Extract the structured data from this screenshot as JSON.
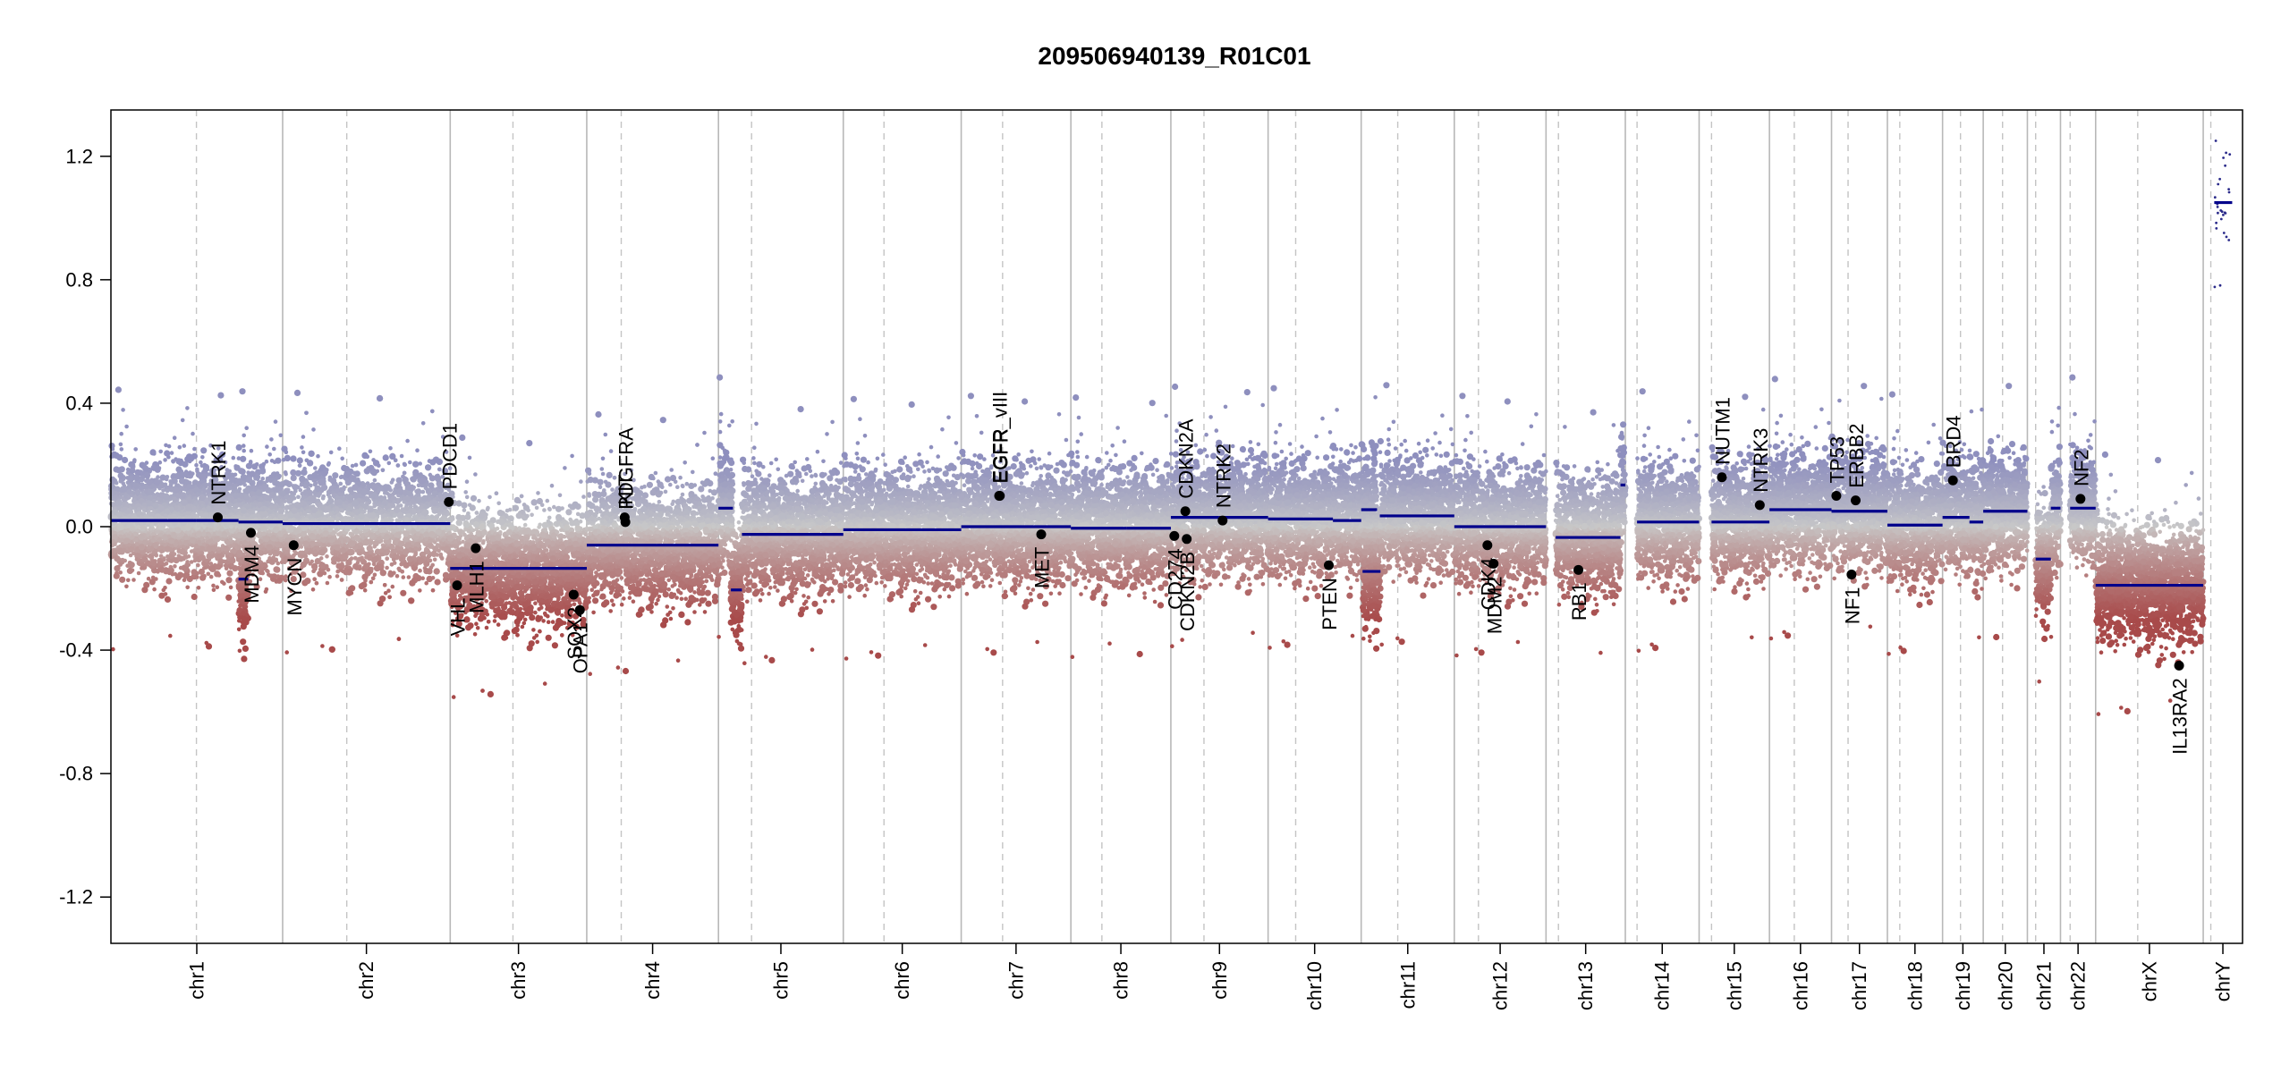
{
  "chart_data": {
    "type": "scatter",
    "title": "209506940139_R01C01",
    "xlabel": "",
    "ylabel": "",
    "ylim": [
      -1.35,
      1.35
    ],
    "yticks": [
      "1.2",
      "0.8",
      "0.4",
      "0.0",
      "-0.4",
      "-0.8",
      "-1.2"
    ],
    "ytick_values": [
      1.2,
      0.8,
      0.4,
      0.0,
      -0.4,
      -0.8,
      -1.2
    ],
    "grid": false,
    "colors": {
      "gain": "#8e8fbe",
      "neutral": "#c8c8c8",
      "loss": "#a84a4a",
      "segment": "#00008b",
      "marker": "#000000"
    },
    "chromosomes": [
      {
        "name": "chr1",
        "start": 0,
        "end": 249,
        "centromere": 124
      },
      {
        "name": "chr2",
        "start": 249,
        "end": 492,
        "centromere": 342
      },
      {
        "name": "chr3",
        "start": 492,
        "end": 690,
        "centromere": 583
      },
      {
        "name": "chr4",
        "start": 690,
        "end": 881,
        "centromere": 740
      },
      {
        "name": "chr5",
        "start": 881,
        "end": 1062,
        "centromere": 929
      },
      {
        "name": "chr6",
        "start": 1062,
        "end": 1233,
        "centromere": 1121
      },
      {
        "name": "chr7",
        "start": 1233,
        "end": 1392,
        "centromere": 1293
      },
      {
        "name": "chr8",
        "start": 1392,
        "end": 1537,
        "centromere": 1437
      },
      {
        "name": "chr9",
        "start": 1537,
        "end": 1678,
        "centromere": 1585
      },
      {
        "name": "chr10",
        "start": 1678,
        "end": 1813,
        "centromere": 1718
      },
      {
        "name": "chr11",
        "start": 1813,
        "end": 1948,
        "centromere": 1866
      },
      {
        "name": "chr12",
        "start": 1948,
        "end": 2081,
        "centromere": 1983
      },
      {
        "name": "chr13",
        "start": 2081,
        "end": 2196,
        "centromere": 2099
      },
      {
        "name": "chr14",
        "start": 2196,
        "end": 2303,
        "centromere": 2213
      },
      {
        "name": "chr15",
        "start": 2303,
        "end": 2405,
        "centromere": 2321
      },
      {
        "name": "chr16",
        "start": 2405,
        "end": 2495,
        "centromere": 2441
      },
      {
        "name": "chr17",
        "start": 2495,
        "end": 2576,
        "centromere": 2519
      },
      {
        "name": "chr18",
        "start": 2576,
        "end": 2656,
        "centromere": 2594
      },
      {
        "name": "chr19",
        "start": 2656,
        "end": 2715,
        "centromere": 2682
      },
      {
        "name": "chr20",
        "start": 2715,
        "end": 2779,
        "centromere": 2743
      },
      {
        "name": "chr21",
        "start": 2779,
        "end": 2827,
        "centromere": 2791
      },
      {
        "name": "chr22",
        "start": 2827,
        "end": 2878,
        "centromere": 2841
      },
      {
        "name": "chrX",
        "start": 2878,
        "end": 3034,
        "centromere": 2939
      },
      {
        "name": "chrY",
        "start": 3034,
        "end": 3091,
        "centromere": 3045
      }
    ],
    "segments": [
      {
        "start": 0,
        "end": 124,
        "y": 0.02
      },
      {
        "start": 124,
        "end": 185,
        "y": 0.02
      },
      {
        "start": 185,
        "end": 199,
        "y": -0.17
      },
      {
        "start": 185,
        "end": 249,
        "y": 0.015
      },
      {
        "start": 249,
        "end": 492,
        "y": 0.01
      },
      {
        "start": 492,
        "end": 690,
        "y": -0.135
      },
      {
        "start": 690,
        "end": 881,
        "y": -0.06
      },
      {
        "start": 881,
        "end": 902,
        "y": 0.06
      },
      {
        "start": 899,
        "end": 915,
        "y": -0.205
      },
      {
        "start": 915,
        "end": 1062,
        "y": -0.025
      },
      {
        "start": 1062,
        "end": 1233,
        "y": -0.01
      },
      {
        "start": 1233,
        "end": 1392,
        "y": 0.0
      },
      {
        "start": 1392,
        "end": 1473,
        "y": -0.005
      },
      {
        "start": 1473,
        "end": 1537,
        "y": -0.005
      },
      {
        "start": 1537,
        "end": 1606,
        "y": 0.03
      },
      {
        "start": 1606,
        "end": 1678,
        "y": 0.03
      },
      {
        "start": 1678,
        "end": 1772,
        "y": 0.025
      },
      {
        "start": 1772,
        "end": 1813,
        "y": 0.02
      },
      {
        "start": 1813,
        "end": 1836,
        "y": 0.055
      },
      {
        "start": 1815,
        "end": 1841,
        "y": -0.145
      },
      {
        "start": 1840,
        "end": 1948,
        "y": 0.035
      },
      {
        "start": 1948,
        "end": 2081,
        "y": 0.0
      },
      {
        "start": 2095,
        "end": 2189,
        "y": -0.035
      },
      {
        "start": 2189,
        "end": 2196,
        "y": 0.135
      },
      {
        "start": 2213,
        "end": 2303,
        "y": 0.015
      },
      {
        "start": 2321,
        "end": 2405,
        "y": 0.015
      },
      {
        "start": 2405,
        "end": 2495,
        "y": 0.055
      },
      {
        "start": 2495,
        "end": 2576,
        "y": 0.05
      },
      {
        "start": 2576,
        "end": 2656,
        "y": 0.005
      },
      {
        "start": 2656,
        "end": 2695,
        "y": 0.03
      },
      {
        "start": 2695,
        "end": 2715,
        "y": 0.015
      },
      {
        "start": 2715,
        "end": 2779,
        "y": 0.05
      },
      {
        "start": 2791,
        "end": 2813,
        "y": -0.105
      },
      {
        "start": 2813,
        "end": 2827,
        "y": 0.06
      },
      {
        "start": 2841,
        "end": 2878,
        "y": 0.06
      },
      {
        "start": 2878,
        "end": 3034,
        "y": -0.19
      },
      {
        "start": 3050,
        "end": 3076,
        "y": 1.05
      }
    ],
    "genes": [
      {
        "name": "NTRK1",
        "pos": 155,
        "y": 0.03,
        "side": "above"
      },
      {
        "name": "MDM4",
        "pos": 203,
        "y": -0.02,
        "side": "below"
      },
      {
        "name": "MYCN",
        "pos": 265,
        "y": -0.06,
        "side": "below"
      },
      {
        "name": "PDCD1",
        "pos": 490,
        "y": 0.08,
        "side": "above"
      },
      {
        "name": "VHL",
        "pos": 502,
        "y": -0.19,
        "side": "below"
      },
      {
        "name": "MLH1",
        "pos": 529,
        "y": -0.07,
        "side": "below"
      },
      {
        "name": "SOX2",
        "pos": 671,
        "y": -0.22,
        "side": "below"
      },
      {
        "name": "OPA1",
        "pos": 680,
        "y": -0.27,
        "side": "below"
      },
      {
        "name": "KIT",
        "pos": 745,
        "y": 0.03,
        "side": "above"
      },
      {
        "name": "PDGFRA",
        "pos": 746,
        "y": 0.015,
        "side": "above"
      },
      {
        "name": "EGFR_vIII",
        "pos": 1288,
        "y": 0.1,
        "side": "above"
      },
      {
        "name": "EGFR",
        "pos": 1289,
        "y": 0.1,
        "side": "above"
      },
      {
        "name": "MET",
        "pos": 1349,
        "y": -0.025,
        "side": "below"
      },
      {
        "name": "CD274",
        "pos": 1542,
        "y": -0.03,
        "side": "below"
      },
      {
        "name": "CDKN2A",
        "pos": 1558,
        "y": 0.05,
        "side": "above"
      },
      {
        "name": "CDKN2B",
        "pos": 1560,
        "y": -0.04,
        "side": "below"
      },
      {
        "name": "NTRK2",
        "pos": 1612,
        "y": 0.02,
        "side": "above"
      },
      {
        "name": "PTEN",
        "pos": 1766,
        "y": -0.125,
        "side": "below"
      },
      {
        "name": "CDK4",
        "pos": 1996,
        "y": -0.06,
        "side": "below"
      },
      {
        "name": "MDM2",
        "pos": 2005,
        "y": -0.12,
        "side": "below"
      },
      {
        "name": "RB1",
        "pos": 2128,
        "y": -0.14,
        "side": "below"
      },
      {
        "name": "NUTM1",
        "pos": 2336,
        "y": 0.16,
        "side": "above"
      },
      {
        "name": "NTRK3",
        "pos": 2391,
        "y": 0.07,
        "side": "above"
      },
      {
        "name": "TP53",
        "pos": 2502,
        "y": 0.1,
        "side": "above"
      },
      {
        "name": "NF1",
        "pos": 2524,
        "y": -0.155,
        "side": "below"
      },
      {
        "name": "ERBB2",
        "pos": 2530,
        "y": 0.085,
        "side": "above"
      },
      {
        "name": "BRD4",
        "pos": 2671,
        "y": 0.15,
        "side": "above"
      },
      {
        "name": "NF2",
        "pos": 2856,
        "y": 0.09,
        "side": "above"
      },
      {
        "name": "IL13RA2",
        "pos": 2999,
        "y": -0.45,
        "side": "below"
      }
    ]
  }
}
